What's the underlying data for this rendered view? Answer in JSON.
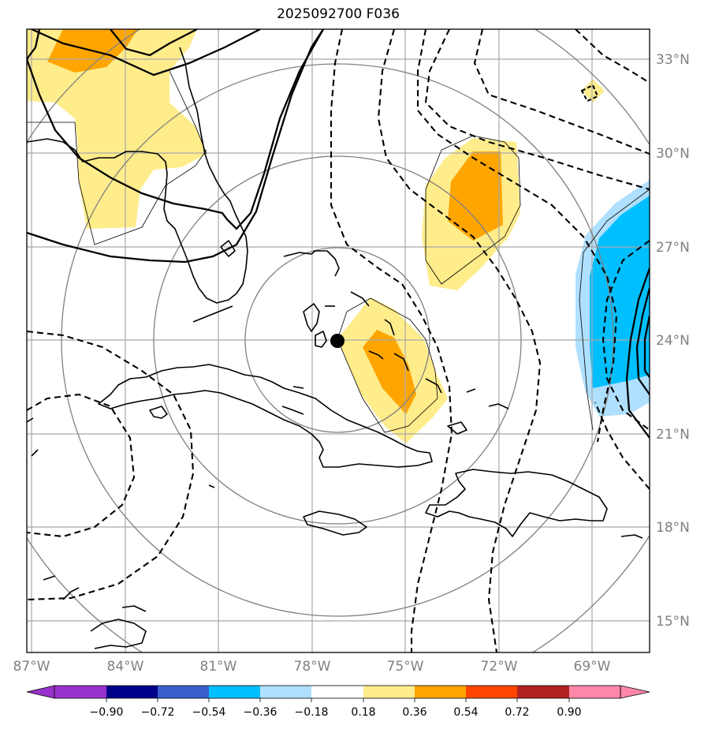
{
  "title": "2025092700 F036",
  "lat_labels": [
    "33°N",
    "30°N",
    "27°N",
    "24°N",
    "21°N",
    "18°N",
    "15°N"
  ],
  "lon_labels": [
    "87°W",
    "84°W",
    "81°W",
    "78°W",
    "75°W",
    "72°W",
    "69°W"
  ],
  "colorbar": {
    "ticks": [
      "−0.90",
      "−0.72",
      "−0.54",
      "−0.36",
      "−0.18",
      "0.18",
      "0.36",
      "0.54",
      "0.72",
      "0.90"
    ],
    "colors": [
      "#9932cc",
      "#00008b",
      "#3a5fcd",
      "#00bfff",
      "#b0e0ff",
      "#ffffff",
      "#ffec8b",
      "#ffa500",
      "#ff4500",
      "#b22222",
      "#ff88aa"
    ]
  },
  "map": {
    "extent": {
      "lon": [
        -87,
        -67.5
      ],
      "lat": [
        14,
        34
      ]
    },
    "storm_center": {
      "lon": -77.2,
      "lat": 24
    },
    "shading_colors": {
      "light_yellow": "#ffec8b",
      "orange": "#ffa500",
      "light_blue": "#b0e0ff",
      "blue": "#00bfff"
    }
  }
}
